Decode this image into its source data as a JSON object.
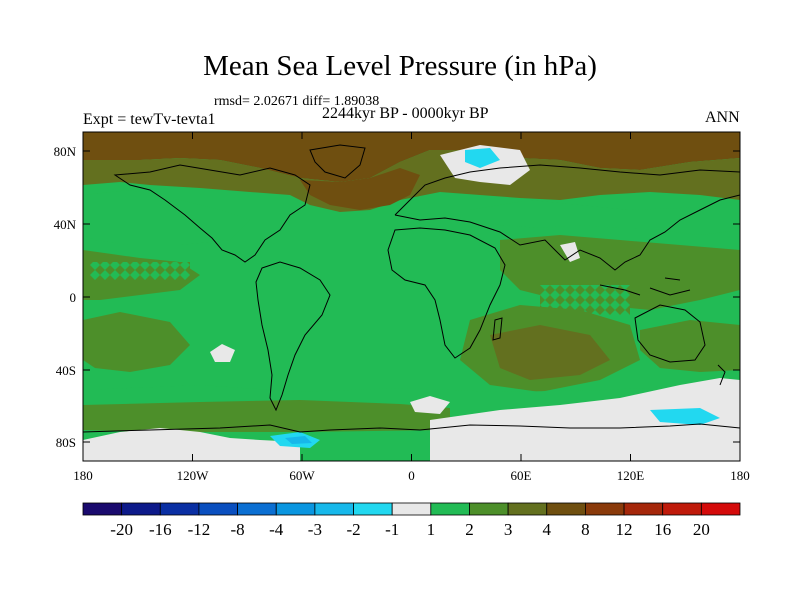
{
  "title": "Mean Sea Level Pressure (in hPa)",
  "rmsd_line": "rmsd= 2.02671 diff= 1.89038",
  "period": "2244kyr BP - 0000kyr BP",
  "experiment": "Expt = tewTv-tevta1",
  "season": "ANN",
  "lat_labels": [
    "80N",
    "40N",
    "0",
    "40S",
    "80S"
  ],
  "lon_labels": [
    "180",
    "120W",
    "60W",
    "0",
    "60E",
    "120E",
    "180"
  ],
  "colorbar": {
    "labels": [
      "-20",
      "-16",
      "-12",
      "-8",
      "-4",
      "-3",
      "-2",
      "-1",
      "1",
      "2",
      "3",
      "4",
      "8",
      "12",
      "16",
      "20"
    ],
    "colors": [
      "#1a0a6e",
      "#0d1a8a",
      "#0a2fa3",
      "#0a4fbf",
      "#0b6fd2",
      "#0a96e0",
      "#17b8ea",
      "#22d8f0",
      "#e8e8e8",
      "#22bb55",
      "#4d8f2a",
      "#63701f",
      "#6f4f10",
      "#8a3a0a",
      "#a5270a",
      "#bf1a0a",
      "#d40a0a"
    ]
  },
  "palette": {
    "positive_1_2": "#22bb55",
    "positive_2_3": "#4d8f2a",
    "positive_3_4": "#63701f",
    "positive_4_8": "#6f4f10",
    "near_zero": "#e8e8e8",
    "negative_1_2": "#22d8f0",
    "negative_2_3": "#17b8ea"
  }
}
